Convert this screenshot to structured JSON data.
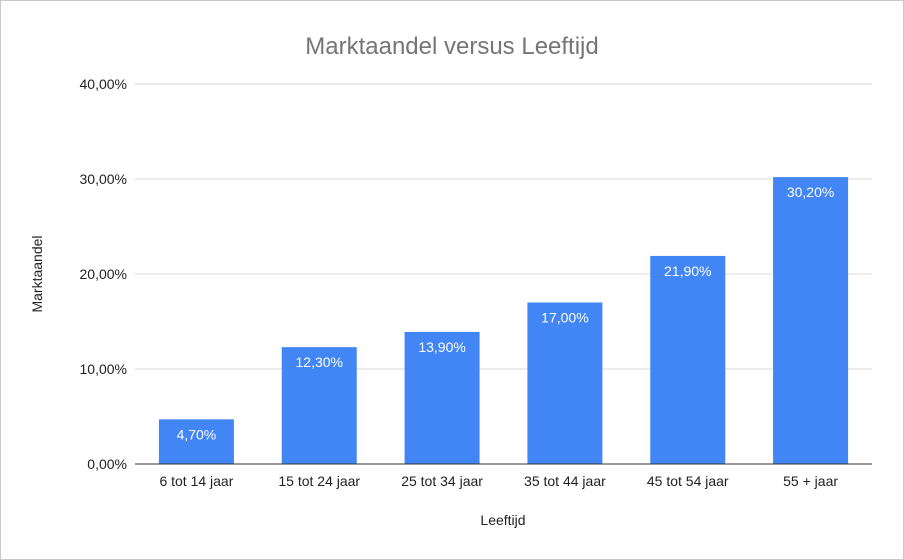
{
  "chart_data": {
    "type": "bar",
    "title": "Marktaandel versus Leeftijd",
    "xlabel": "Leeftijd",
    "ylabel": "Marktaandel",
    "categories": [
      "6 tot 14 jaar",
      "15 tot 24 jaar",
      "25 tot 34 jaar",
      "35 tot 44 jaar",
      "45 tot 54 jaar",
      "55 + jaar"
    ],
    "values": [
      4.7,
      12.3,
      13.9,
      17.0,
      21.9,
      30.2
    ],
    "data_labels": [
      "4,70%",
      "12,30%",
      "13,90%",
      "17,00%",
      "21,90%",
      "30,20%"
    ],
    "ylim": [
      0,
      40
    ],
    "yticks": [
      0,
      10,
      20,
      30,
      40
    ],
    "ytick_labels": [
      "0,00%",
      "10,00%",
      "20,00%",
      "30,00%",
      "40,00%"
    ],
    "grid": true,
    "legend": "none",
    "bar_color": "#4285f4",
    "gridline_color": "#d9d9d9",
    "axis_color": "#333333"
  }
}
